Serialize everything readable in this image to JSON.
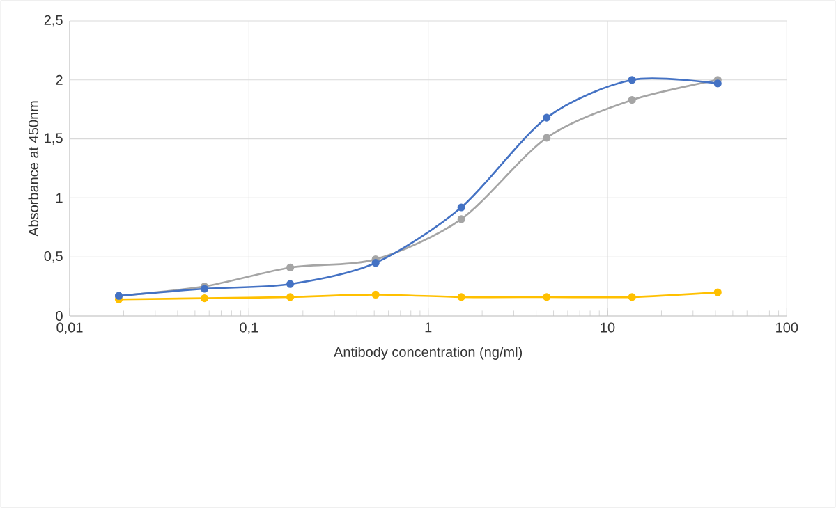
{
  "chart_data": {
    "type": "line",
    "xlabel": "Antibody concentration (ng/ml)",
    "ylabel": "Absorbance at 450nm",
    "x": [
      0.0188,
      0.0565,
      0.17,
      0.509,
      1.53,
      4.58,
      13.7,
      41.2
    ],
    "series": [
      {
        "color": "#4472c4",
        "values": [
          0.17,
          0.23,
          0.27,
          0.45,
          0.92,
          1.68,
          2.0,
          1.97
        ]
      },
      {
        "color": "#a5a5a5",
        "values": [
          0.17,
          0.25,
          0.41,
          0.48,
          0.82,
          1.51,
          1.83,
          2.0
        ]
      },
      {
        "color": "#ffc000",
        "values": [
          0.14,
          0.15,
          0.16,
          0.18,
          0.16,
          0.16,
          0.16,
          0.2
        ]
      }
    ],
    "log": "x",
    "xlim": [
      0.01,
      100
    ],
    "xticks": [
      {
        "value": 0.01,
        "label": "0,01"
      },
      {
        "value": 0.1,
        "label": "0,1"
      },
      1,
      10,
      100
    ],
    "ylim": [
      0,
      2.5
    ],
    "yticks": [
      0,
      {
        "value": 0.5,
        "label": "0,5"
      },
      1,
      {
        "value": 1.5,
        "label": "1,5"
      },
      2,
      {
        "value": 2.5,
        "label": "2,5"
      }
    ],
    "grid": true,
    "marker": "circle",
    "line_style": "solid"
  }
}
